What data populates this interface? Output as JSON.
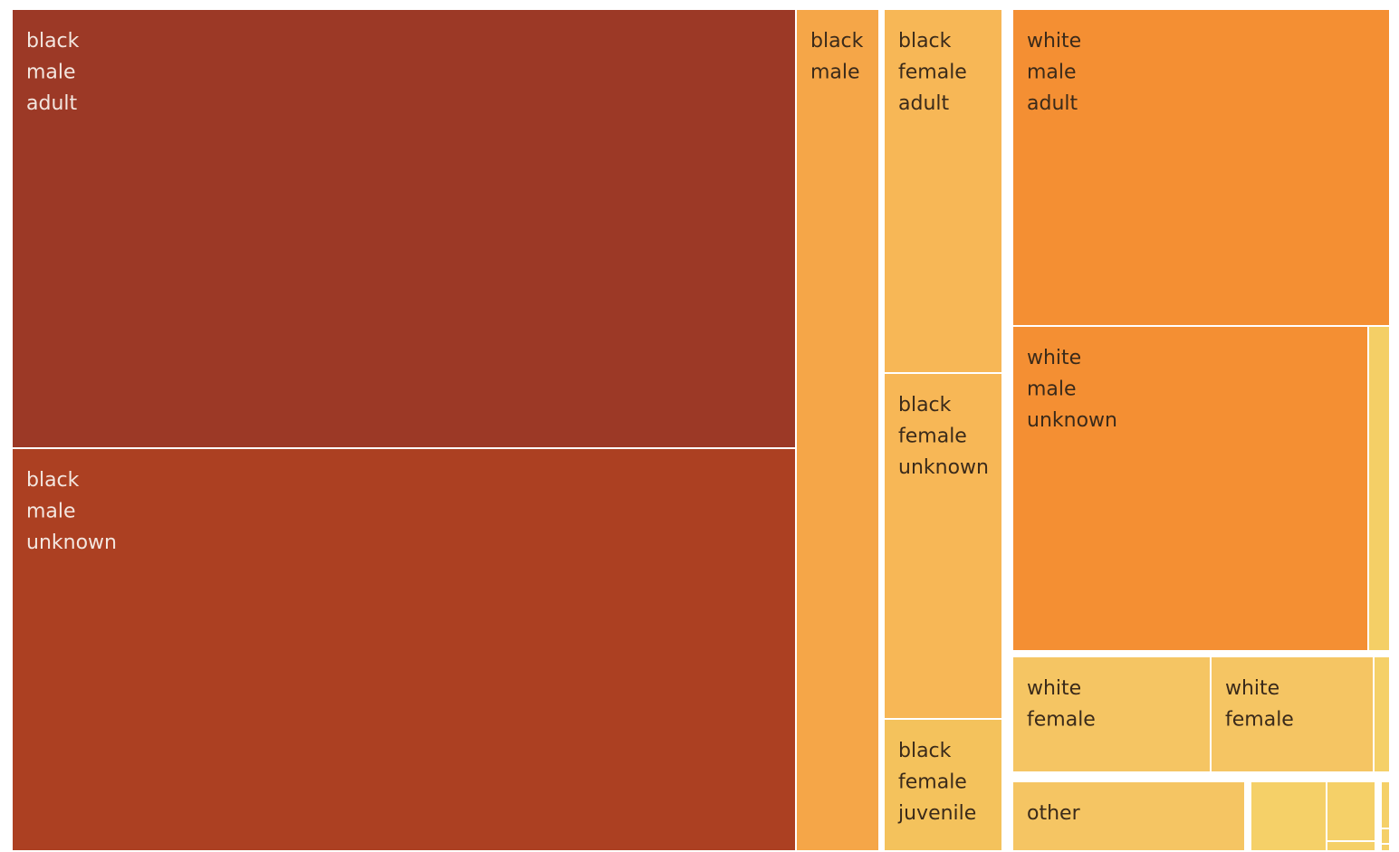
{
  "chart_data": {
    "type": "treemap",
    "title": "",
    "colors": {
      "black_male_adult": "#9c3926",
      "black_male_unknown": "#ac4022",
      "black_male": "#f5a648",
      "black_female_adult": "#f7b756",
      "black_female_unknown": "#f7b756",
      "black_female_juvenile": "#f4c25c",
      "white_male_adult": "#f48f33",
      "white_male_unknown": "#f48f33",
      "white_male_small": "#f4cf66",
      "white_female": "#f5c563",
      "other": "#f5c563",
      "small": "#f5d068",
      "dark_text": "#3a2a1a",
      "light_text": "#f3e6df"
    },
    "tiles": [
      {
        "group": "black",
        "label": [
          "black",
          "male",
          "adult"
        ],
        "value": 4170,
        "color_key": "black_male_adult"
      },
      {
        "group": "black",
        "label": [
          "black",
          "male",
          "unknown"
        ],
        "value": 3840,
        "color_key": "black_male_unknown"
      },
      {
        "group": "black",
        "label": [
          "black",
          "male"
        ],
        "value": 837,
        "color_key": "black_male"
      },
      {
        "group": "black",
        "label": [
          "black",
          "female",
          "adult"
        ],
        "value": 520,
        "color_key": "black_female_adult"
      },
      {
        "group": "black",
        "label": [
          "black",
          "female",
          "unknown"
        ],
        "value": 490,
        "color_key": "black_female_unknown"
      },
      {
        "group": "black",
        "label": [
          "black",
          "female",
          "juvenile"
        ],
        "value": 190,
        "color_key": "black_female_juvenile"
      },
      {
        "group": "white",
        "label": [
          "white",
          "male",
          "adult"
        ],
        "value": 1450,
        "color_key": "white_male_adult"
      },
      {
        "group": "white",
        "label": [
          "white",
          "male",
          "unknown"
        ],
        "value": 1400,
        "color_key": "white_male_unknown"
      },
      {
        "group": "white",
        "label": [],
        "value": 80,
        "color_key": "white_male_small"
      },
      {
        "group": "white",
        "label": [
          "white",
          "female"
        ],
        "value": 280,
        "color_key": "white_female"
      },
      {
        "group": "white",
        "label": [
          "white",
          "female"
        ],
        "value": 230,
        "color_key": "white_female"
      },
      {
        "group": "white",
        "label": [],
        "value": 20,
        "color_key": "small"
      },
      {
        "group": "other",
        "label": [
          "other"
        ],
        "value": 195,
        "color_key": "other"
      },
      {
        "group": "other",
        "label": [],
        "value": 62,
        "color_key": "small"
      },
      {
        "group": "other",
        "label": [],
        "value": 30,
        "color_key": "small"
      },
      {
        "group": "other",
        "label": [],
        "value": 10,
        "color_key": "small"
      },
      {
        "group": "other",
        "label": [],
        "value": 2,
        "color_key": "small"
      },
      {
        "group": "other",
        "label": [],
        "value": 2,
        "color_key": "small"
      },
      {
        "group": "other",
        "label": [],
        "value": 2,
        "color_key": "small"
      }
    ]
  }
}
